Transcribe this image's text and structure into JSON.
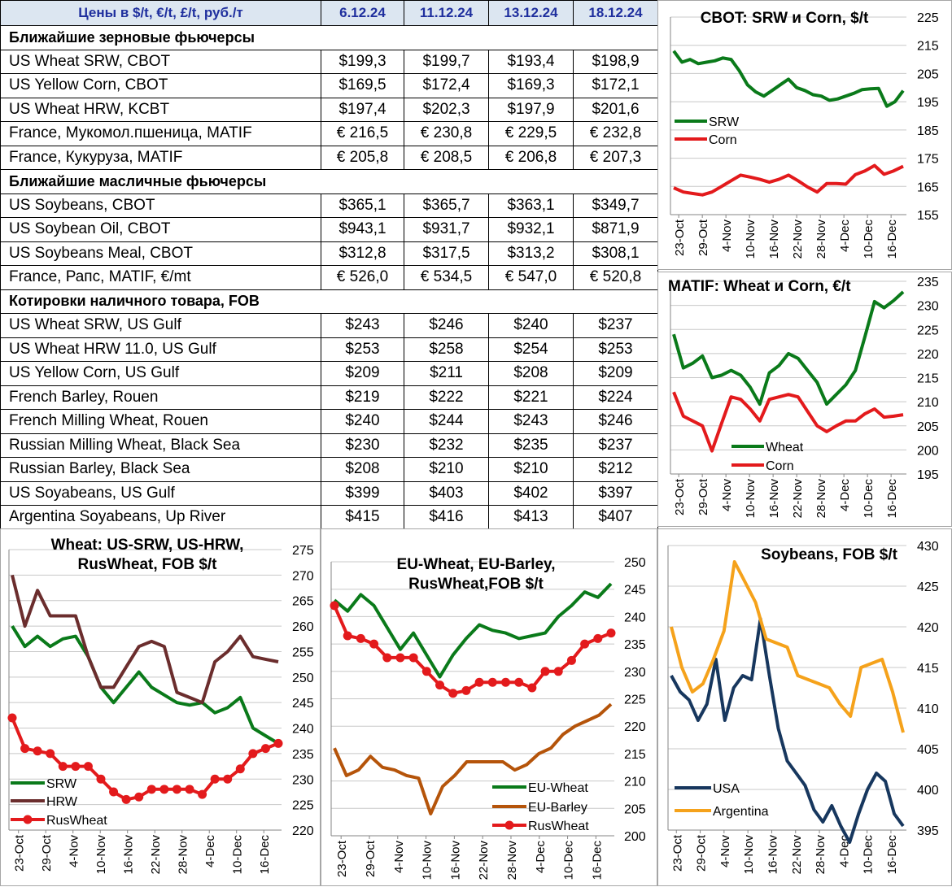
{
  "table": {
    "header": [
      "Цены в  $/t, €/t, £/t, руб./т",
      "6.12.24",
      "11.12.24",
      "13.12.24",
      "18.12.24"
    ],
    "rows": [
      {
        "type": "section",
        "label": "Ближайшие зерновые фьючерсы"
      },
      {
        "type": "data",
        "label": "US Wheat SRW, CBOT",
        "values": [
          "$199,3",
          "$199,7",
          "$193,4",
          "$198,9"
        ]
      },
      {
        "type": "data",
        "label": "US Yellow Corn, CBOT",
        "values": [
          "$169,5",
          "$172,4",
          "$169,3",
          "$172,1"
        ]
      },
      {
        "type": "data",
        "label": "US Wheat HRW, KCBT",
        "values": [
          "$197,4",
          "$202,3",
          "$197,9",
          "$201,6"
        ]
      },
      {
        "type": "data",
        "label": "France, Мукомол.пшеница, MATIF",
        "values": [
          "€ 216,5",
          "€ 230,8",
          "€ 229,5",
          "€ 232,8"
        ]
      },
      {
        "type": "data",
        "label": "France, Кукуруза, MATIF",
        "values": [
          "€ 205,8",
          "€ 208,5",
          "€ 206,8",
          "€ 207,3"
        ]
      },
      {
        "type": "section",
        "label": "Ближайшие масличные фьючерсы"
      },
      {
        "type": "data",
        "label": "US Soybeans, CBOT",
        "values": [
          "$365,1",
          "$365,7",
          "$363,1",
          "$349,7"
        ]
      },
      {
        "type": "data",
        "label": "US Soybean Oil, CBOT",
        "values": [
          "$943,1",
          "$931,7",
          "$932,1",
          "$871,9"
        ]
      },
      {
        "type": "data",
        "label": "US Soybeans Meal, CBOT",
        "values": [
          "$312,8",
          "$317,5",
          "$313,2",
          "$308,1"
        ]
      },
      {
        "type": "data",
        "label": "France, Рапс, MATIF, €/mt",
        "values": [
          "€ 526,0",
          "€ 534,5",
          "€ 547,0",
          "€ 520,8"
        ]
      },
      {
        "type": "section",
        "label": "Котировки наличного товара, FOB"
      },
      {
        "type": "data",
        "label": "US Wheat SRW, US Gulf",
        "values": [
          "$243",
          "$246",
          "$240",
          "$237"
        ]
      },
      {
        "type": "data",
        "label": "US Wheat HRW 11.0, US Gulf",
        "values": [
          "$253",
          "$258",
          "$254",
          "$253"
        ]
      },
      {
        "type": "data",
        "label": "US Yellow Corn, US Gulf",
        "values": [
          "$209",
          "$211",
          "$208",
          "$209"
        ]
      },
      {
        "type": "data",
        "label": "French Barley, Rouen",
        "values": [
          "$219",
          "$222",
          "$221",
          "$224"
        ]
      },
      {
        "type": "data",
        "label": "French Milling Wheat, Rouen",
        "values": [
          "$240",
          "$244",
          "$243",
          "$246"
        ]
      },
      {
        "type": "data",
        "label": "Russian Milling Wheat, Black Sea",
        "values": [
          "$230",
          "$232",
          "$235",
          "$237"
        ]
      },
      {
        "type": "data",
        "label": "Russian Barley, Black Sea",
        "values": [
          "$208",
          "$210",
          "$210",
          "$212"
        ]
      },
      {
        "type": "data",
        "label": "US Soyabeans, US Gulf",
        "values": [
          "$399",
          "$403",
          "$402",
          "$397"
        ]
      },
      {
        "type": "data",
        "label": "Argentina Soyabeans, Up River",
        "values": [
          "$415",
          "$416",
          "$413",
          "$407"
        ]
      }
    ]
  },
  "chart_data": [
    {
      "id": "cbot",
      "type": "line",
      "title": "CBOT: SRW и Corn, $/t",
      "x_labels": [
        "23-Oct",
        "29-Oct",
        "4-Nov",
        "10-Nov",
        "16-Nov",
        "22-Nov",
        "28-Nov",
        "4-Dec",
        "10-Dec",
        "16-Dec"
      ],
      "ylim": [
        155,
        225
      ],
      "ytick_step": 10,
      "legend_position": "left-middle",
      "series": [
        {
          "name": "SRW",
          "color": "#0a7a1a",
          "marker": false,
          "values": [
            213,
            209,
            210,
            208.5,
            209,
            209.5,
            210.5,
            210,
            206,
            201,
            198.5,
            197,
            199,
            201,
            203,
            200,
            199,
            197.5,
            197,
            195.5,
            196,
            197,
            198,
            199.3,
            199.6,
            199.7,
            193.4,
            195,
            198.9
          ]
        },
        {
          "name": "Corn",
          "color": "#e31a1c",
          "marker": false,
          "values": [
            164.5,
            163,
            162.5,
            162,
            163,
            165,
            167,
            169,
            168.3,
            167.5,
            166.5,
            167.5,
            169,
            167,
            164.8,
            163,
            166,
            166,
            165.8,
            169.2,
            170.5,
            172.4,
            169.3,
            170.5,
            172.1
          ]
        }
      ]
    },
    {
      "id": "matif",
      "type": "line",
      "title": "MATIF: Wheat и Corn, €/t",
      "x_labels": [
        "23-Oct",
        "29-Oct",
        "4-Nov",
        "10-Nov",
        "16-Nov",
        "22-Nov",
        "28-Nov",
        "4-Dec",
        "10-Dec",
        "16-Dec"
      ],
      "ylim": [
        195,
        235
      ],
      "ytick_step": 5,
      "legend_position": "bottom-left",
      "series": [
        {
          "name": "Wheat",
          "color": "#0a7a1a",
          "marker": false,
          "values": [
            224,
            217,
            218,
            219.5,
            215,
            215.5,
            216.5,
            215.5,
            213,
            209.5,
            216,
            217.5,
            220,
            219,
            216.5,
            214,
            209.5,
            211.5,
            213.5,
            216.5,
            223.5,
            230.8,
            229.5,
            231,
            232.8
          ]
        },
        {
          "name": "Corn",
          "color": "#e31a1c",
          "marker": false,
          "values": [
            212,
            207,
            206,
            205,
            199.8,
            205.5,
            211,
            210.5,
            208.5,
            206,
            210.5,
            211,
            211.5,
            211,
            208,
            205,
            203.8,
            205,
            206,
            206,
            207.5,
            208.5,
            206.8,
            207,
            207.3
          ]
        }
      ]
    },
    {
      "id": "wheat_fob",
      "type": "line",
      "title_lines": [
        "Wheat: US-SRW, US-HRW,",
        "RusWheat, FOB $/t"
      ],
      "x_labels": [
        "23-Oct",
        "29-Oct",
        "4-Nov",
        "10-Nov",
        "16-Nov",
        "22-Nov",
        "28-Nov",
        "4-Dec",
        "10-Dec",
        "16-Dec"
      ],
      "ylim": [
        220,
        275
      ],
      "ytick_step": 5,
      "legend_position": "bottom-left",
      "series": [
        {
          "name": "SRW",
          "color": "#0a7a1a",
          "marker": false,
          "values": [
            260,
            256,
            258,
            256,
            257.5,
            258,
            254,
            248,
            245,
            248,
            251,
            248,
            246.5,
            245,
            244.5,
            245,
            243,
            244,
            246,
            240,
            238.5,
            237
          ]
        },
        {
          "name": "HRW",
          "color": "#6b2d2d",
          "marker": false,
          "values": [
            270,
            260,
            267,
            262,
            262,
            262,
            254,
            248,
            248,
            252,
            256,
            257,
            256,
            247,
            246,
            245,
            253,
            255,
            258,
            254,
            253.5,
            253
          ]
        },
        {
          "name": "RusWheat",
          "color": "#e31a1c",
          "marker": true,
          "values": [
            242,
            236,
            235.5,
            235,
            232.5,
            232.5,
            232.5,
            230,
            227.5,
            226,
            226.5,
            228,
            228,
            228,
            228,
            227,
            230,
            230,
            232,
            235,
            236,
            237
          ]
        }
      ]
    },
    {
      "id": "eu_fob",
      "type": "line",
      "title_lines": [
        "EU-Wheat, EU-Barley,",
        "RusWheat,FOB $/t"
      ],
      "x_labels": [
        "23-Oct",
        "29-Oct",
        "4-Nov",
        "10-Nov",
        "16-Nov",
        "22-Nov",
        "28-Nov",
        "4-Dec",
        "10-Dec",
        "16-Dec"
      ],
      "ylim": [
        200,
        250
      ],
      "ytick_step": 5,
      "legend_position": "bottom-right",
      "series": [
        {
          "name": "EU-Wheat",
          "color": "#0a7a1a",
          "marker": false,
          "values": [
            243,
            241,
            244,
            242,
            238,
            234,
            237,
            233,
            229,
            233,
            236,
            238.5,
            237.5,
            237,
            236,
            236.5,
            237,
            240,
            242,
            244.5,
            243.5,
            246
          ]
        },
        {
          "name": "EU-Barley",
          "color": "#b5540a",
          "marker": false,
          "values": [
            216,
            211,
            212,
            214.5,
            212.5,
            212,
            211,
            210.5,
            204,
            209,
            211,
            213.5,
            213.5,
            213.5,
            213.5,
            212,
            213,
            215,
            216,
            218.5,
            220,
            221,
            222,
            224
          ]
        },
        {
          "name": "RusWheat",
          "color": "#e31a1c",
          "marker": true,
          "values": [
            242,
            236.5,
            236,
            235,
            232.5,
            232.5,
            232.5,
            230,
            227.5,
            226,
            226.5,
            228,
            228,
            228,
            228,
            227,
            230,
            230,
            232,
            235,
            236,
            237
          ]
        }
      ]
    },
    {
      "id": "soy_fob",
      "type": "line",
      "title": "Soybeans, FOB $/t",
      "x_labels": [
        "23-Oct",
        "29-Oct",
        "4-Nov",
        "10-Nov",
        "16-Nov",
        "22-Nov",
        "28-Nov",
        "4-Dec",
        "10-Dec",
        "16-Dec"
      ],
      "ylim": [
        395,
        430
      ],
      "ytick_step": 5,
      "legend_position": "bottom-left",
      "series": [
        {
          "name": "USA",
          "color": "#17375e",
          "marker": false,
          "values": [
            414,
            412,
            411,
            408.5,
            410.5,
            416,
            408.5,
            412.5,
            414,
            413.5,
            421,
            414,
            407.5,
            403.5,
            402,
            400.5,
            397.5,
            396,
            398,
            395.5,
            393.5,
            397,
            400,
            402,
            401,
            397,
            395.5
          ]
        },
        {
          "name": "Argentina",
          "color": "#f5a21b",
          "marker": false,
          "values": [
            420,
            415,
            412,
            413,
            416,
            419.5,
            428,
            425.5,
            423,
            418.5,
            418,
            417.5,
            414,
            413.5,
            413,
            412.5,
            410.5,
            409,
            415,
            415.5,
            416,
            412,
            407
          ]
        }
      ]
    }
  ]
}
